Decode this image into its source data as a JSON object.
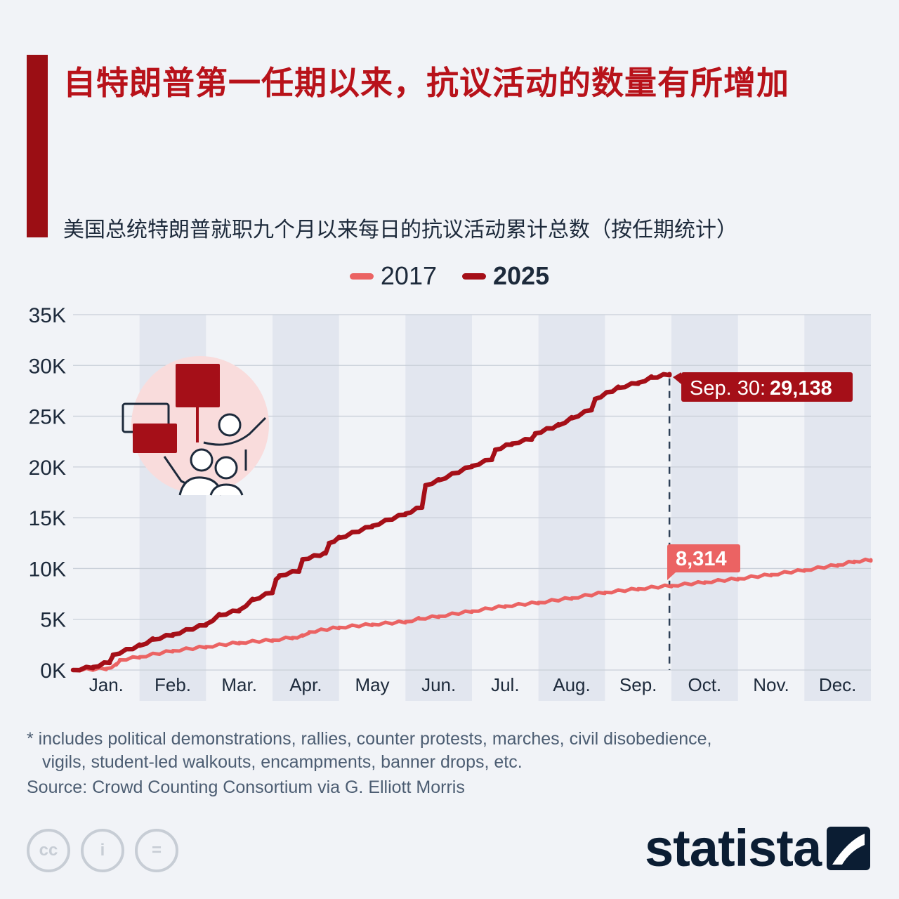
{
  "title": "自特朗普第一任期以来，抗议活动的数量有所增加",
  "subtitle": "美国总统特朗普就职九个月以来每日的抗议活动累计总数（按任期统计）",
  "footnote_line1": "* includes political demonstrations, rallies, counter protests, marches, civil disobedience,",
  "footnote_line2": "vigils, student-led walkouts, encampments, banner drops, etc.",
  "source": "Source: Crowd Counting Consortium via G. Elliott Morris",
  "logo_text": "statista",
  "cc_icons": [
    "cc-icon",
    "person-icon",
    "equals-icon"
  ],
  "colors": {
    "accent": "#9b0e14",
    "series_2017": "#eb6363",
    "series_2025": "#a50f18",
    "shade": "#e2e6ef",
    "grid": "#c9cfd8"
  },
  "chart_data": {
    "type": "line",
    "x_categories": [
      "Jan.",
      "Feb.",
      "Mar.",
      "Apr.",
      "May",
      "Jun.",
      "Jul.",
      "Aug.",
      "Sep.",
      "Oct.",
      "Nov.",
      "Dec."
    ],
    "y_ticks": [
      "0K",
      "5K",
      "10K",
      "15K",
      "20K",
      "25K",
      "30K",
      "35K"
    ],
    "ylim": [
      0,
      35000
    ],
    "x_unit": "month",
    "xlim": [
      0,
      12
    ],
    "shaded_months": [
      "Feb.",
      "Apr.",
      "Jun.",
      "Aug.",
      "Oct.",
      "Dec."
    ],
    "series": [
      {
        "name": "2017",
        "points": [
          [
            0,
            0
          ],
          [
            0.5,
            150
          ],
          [
            0.65,
            500
          ],
          [
            0.7,
            1000
          ],
          [
            1,
            1300
          ],
          [
            1.5,
            1900
          ],
          [
            2,
            2300
          ],
          [
            2.5,
            2700
          ],
          [
            3,
            2950
          ],
          [
            3.3,
            3200
          ],
          [
            3.45,
            3350
          ],
          [
            3.55,
            3750
          ],
          [
            4,
            4200
          ],
          [
            4.5,
            4500
          ],
          [
            5,
            4750
          ],
          [
            5.2,
            5050
          ],
          [
            5.5,
            5300
          ],
          [
            6,
            5800
          ],
          [
            6.5,
            6300
          ],
          [
            7,
            6650
          ],
          [
            7.5,
            7100
          ],
          [
            8,
            7650
          ],
          [
            8.5,
            8000
          ],
          [
            9.0,
            8314
          ],
          [
            9.5,
            8650
          ],
          [
            10,
            9000
          ],
          [
            10.5,
            9400
          ],
          [
            11,
            9850
          ],
          [
            11.5,
            10350
          ],
          [
            11.75,
            10700
          ],
          [
            12,
            10850
          ]
        ]
      },
      {
        "name": "2025",
        "points": [
          [
            0,
            0
          ],
          [
            0.3,
            300
          ],
          [
            0.55,
            800
          ],
          [
            0.6,
            1500
          ],
          [
            1,
            2400
          ],
          [
            1.2,
            3000
          ],
          [
            1.5,
            3500
          ],
          [
            2,
            4500
          ],
          [
            2.2,
            5400
          ],
          [
            2.5,
            5900
          ],
          [
            2.7,
            6900
          ],
          [
            3,
            7700
          ],
          [
            3.05,
            8900
          ],
          [
            3.1,
            9300
          ],
          [
            3.4,
            9800
          ],
          [
            3.45,
            10900
          ],
          [
            3.8,
            11500
          ],
          [
            3.85,
            12500
          ],
          [
            4,
            13000
          ],
          [
            4.5,
            14200
          ],
          [
            5,
            15400
          ],
          [
            5.25,
            16100
          ],
          [
            5.3,
            18200
          ],
          [
            5.5,
            18700
          ],
          [
            6,
            20100
          ],
          [
            6.3,
            20800
          ],
          [
            6.35,
            21700
          ],
          [
            6.6,
            22300
          ],
          [
            6.9,
            22800
          ],
          [
            6.95,
            23300
          ],
          [
            7.3,
            24100
          ],
          [
            7.5,
            24800
          ],
          [
            7.8,
            25700
          ],
          [
            7.85,
            26700
          ],
          [
            8.2,
            27800
          ],
          [
            8.5,
            28300
          ],
          [
            8.7,
            28800
          ],
          [
            8.97,
            29138
          ]
        ]
      }
    ],
    "annotations": [
      {
        "series": "2025",
        "date_label": "Sep. 30:",
        "value_label": "29,138"
      },
      {
        "series": "2017",
        "value_label": "8,314"
      }
    ]
  }
}
